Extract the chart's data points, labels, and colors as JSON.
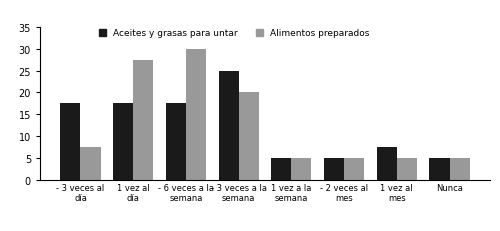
{
  "categories": [
    "- 3 veces al\ndía",
    "1 vez al\ndía",
    "- 6 veces a la\nsemana",
    "- 3 veces a la\nsemana",
    "1 vez a la\nsemana",
    "- 2 veces al\nmes",
    "1 vez al\nmes",
    "Nunca"
  ],
  "series1_name": "Aceites y grasas para untar",
  "series2_name": "Alimentos preparados",
  "series1_values": [
    17.5,
    17.5,
    17.5,
    25.0,
    5.0,
    5.0,
    7.5,
    5.0
  ],
  "series2_values": [
    7.5,
    27.5,
    30.0,
    20.0,
    5.0,
    5.0,
    5.0,
    5.0
  ],
  "bar_color1": "#1a1a1a",
  "bar_color2": "#999999",
  "ylim": [
    0,
    35
  ],
  "yticks": [
    0,
    5,
    10,
    15,
    20,
    25,
    30,
    35
  ],
  "background_color": "#ffffff",
  "bar_width": 0.38,
  "figsize": [
    5.0,
    2.32
  ],
  "dpi": 100
}
